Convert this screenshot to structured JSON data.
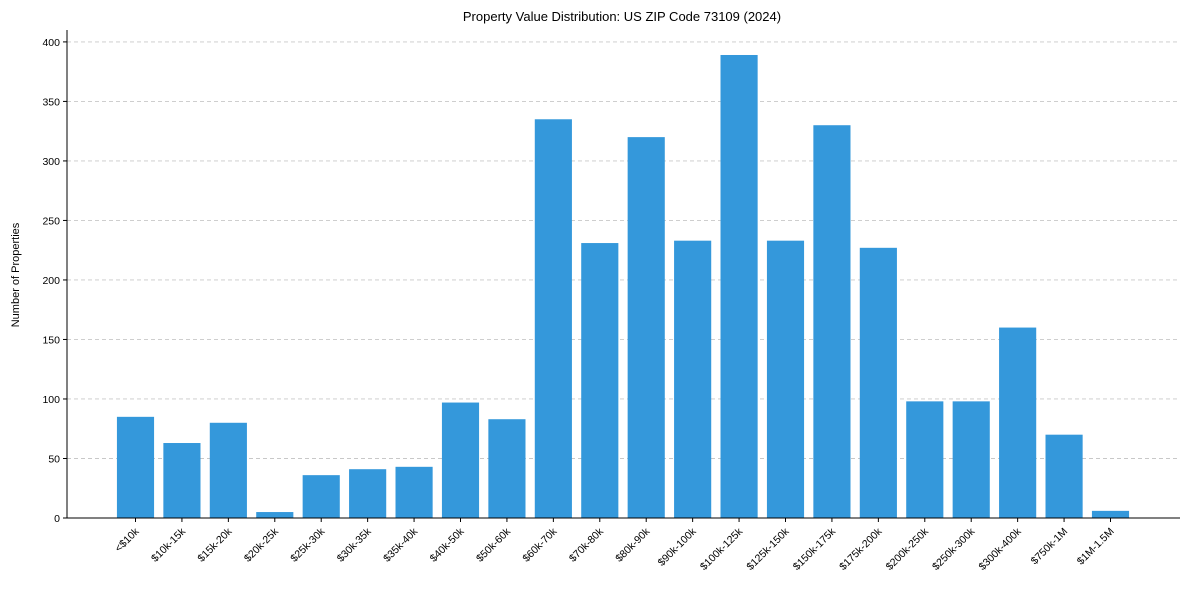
{
  "chart_data": {
    "type": "bar",
    "title": "Property Value Distribution: US ZIP Code 73109 (2024)",
    "xlabel": "",
    "ylabel": "Number of Properties",
    "ylim": [
      0,
      410
    ],
    "yticks": [
      0,
      50,
      100,
      150,
      200,
      250,
      300,
      350,
      400
    ],
    "grid": "y, dashed",
    "bar_color": "#3498db",
    "categories": [
      "<$10k",
      "$10k-15k",
      "$15k-20k",
      "$20k-25k",
      "$25k-30k",
      "$30k-35k",
      "$35k-40k",
      "$40k-50k",
      "$50k-60k",
      "$60k-70k",
      "$70k-80k",
      "$80k-90k",
      "$90k-100k",
      "$100k-125k",
      "$125k-150k",
      "$150k-175k",
      "$175k-200k",
      "$200k-250k",
      "$250k-300k",
      "$300k-400k",
      "$750k-1M",
      "$1M-1.5M"
    ],
    "values": [
      85,
      63,
      80,
      5,
      36,
      41,
      43,
      97,
      83,
      335,
      231,
      320,
      233,
      389,
      233,
      330,
      227,
      98,
      98,
      160,
      70,
      6
    ]
  }
}
